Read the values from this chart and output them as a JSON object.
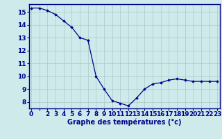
{
  "x": [
    0,
    1,
    2,
    3,
    4,
    5,
    6,
    7,
    8,
    9,
    10,
    11,
    12,
    13,
    14,
    15,
    16,
    17,
    18,
    19,
    20,
    21,
    22,
    23
  ],
  "y": [
    15.3,
    15.3,
    15.1,
    14.8,
    14.3,
    13.8,
    13.0,
    12.8,
    10.0,
    9.0,
    8.1,
    7.9,
    7.7,
    8.3,
    9.0,
    9.4,
    9.5,
    9.7,
    9.8,
    9.7,
    9.6,
    9.6,
    9.6,
    9.6
  ],
  "xlabel": "Graphe des températures (°c)",
  "ylim": [
    7.5,
    15.6
  ],
  "xlim": [
    -0.3,
    23.3
  ],
  "yticks": [
    8,
    9,
    10,
    11,
    12,
    13,
    14,
    15
  ],
  "xticks": [
    0,
    1,
    2,
    3,
    4,
    5,
    6,
    7,
    8,
    9,
    10,
    11,
    12,
    13,
    14,
    15,
    16,
    17,
    18,
    19,
    20,
    21,
    22,
    23
  ],
  "xtick_labels": [
    "0",
    "",
    "2",
    "3",
    "4",
    "5",
    "6",
    "7",
    "8",
    "9",
    "10",
    "11",
    "12",
    "13",
    "14",
    "15",
    "16",
    "17",
    "18",
    "19",
    "20",
    "21",
    "22",
    "23"
  ],
  "line_color": "#00008b",
  "marker": "D",
  "marker_size": 1.8,
  "bg_color": "#ceeaea",
  "grid_color": "#aec8c8",
  "axis_color": "#00008b",
  "tick_label_color": "#00008b",
  "xlabel_color": "#00008b",
  "xlabel_fontsize": 7.0,
  "tick_fontsize": 6.5,
  "linewidth": 0.9
}
